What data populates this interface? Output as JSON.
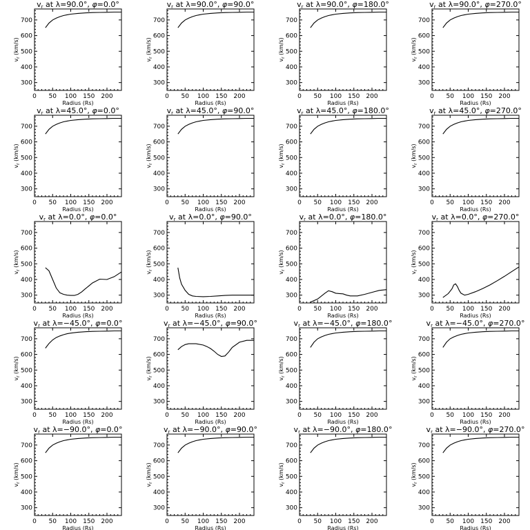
{
  "chart_data": [
    {
      "type": "line",
      "title": "v_r at λ=90.0°, φ=0.0°",
      "lat": "90.0",
      "phi": "0.0",
      "xlabel": "Radius (Rs)",
      "ylabel": "v_r (km/s)",
      "xlim": [
        0,
        240
      ],
      "ylim": [
        250,
        770
      ],
      "x": [
        30,
        40,
        50,
        60,
        70,
        80,
        90,
        100,
        120,
        140,
        160,
        180,
        200,
        220,
        240
      ],
      "y": [
        650,
        680,
        700,
        712,
        721,
        728,
        733,
        737,
        742,
        745,
        747,
        748,
        749,
        750,
        750
      ]
    },
    {
      "type": "line",
      "title": "v_r at λ=90.0°, φ=90.0°",
      "lat": "90.0",
      "phi": "90.0",
      "xlabel": "Radius (Rs)",
      "ylabel": "v_r (km/s)",
      "xlim": [
        0,
        240
      ],
      "ylim": [
        250,
        770
      ],
      "x": [
        30,
        40,
        50,
        60,
        70,
        80,
        90,
        100,
        120,
        140,
        160,
        180,
        200,
        220,
        240
      ],
      "y": [
        650,
        680,
        700,
        712,
        721,
        728,
        733,
        737,
        742,
        745,
        747,
        748,
        749,
        750,
        750
      ]
    },
    {
      "type": "line",
      "title": "v_r at λ=90.0°, φ=180.0°",
      "lat": "90.0",
      "phi": "180.0",
      "xlabel": "Radius (Rs)",
      "ylabel": "v_r (km/s)",
      "xlim": [
        0,
        240
      ],
      "ylim": [
        250,
        770
      ],
      "x": [
        30,
        40,
        50,
        60,
        70,
        80,
        90,
        100,
        120,
        140,
        160,
        180,
        200,
        220,
        240
      ],
      "y": [
        650,
        680,
        700,
        712,
        721,
        728,
        733,
        737,
        742,
        745,
        747,
        748,
        749,
        750,
        750
      ]
    },
    {
      "type": "line",
      "title": "v_r at λ=90.0°, φ=270.0°",
      "lat": "90.0",
      "phi": "270.0",
      "xlabel": "Radius (Rs)",
      "ylabel": "v_r (km/s)",
      "xlim": [
        0,
        240
      ],
      "ylim": [
        250,
        770
      ],
      "x": [
        30,
        40,
        50,
        60,
        70,
        80,
        90,
        100,
        120,
        140,
        160,
        180,
        200,
        220,
        240
      ],
      "y": [
        650,
        680,
        700,
        712,
        721,
        728,
        733,
        737,
        742,
        745,
        747,
        748,
        749,
        750,
        750
      ]
    },
    {
      "type": "line",
      "title": "v_r at λ=45.0°, φ=0.0°",
      "lat": "45.0",
      "phi": "0.0",
      "xlabel": "Radius (Rs)",
      "ylabel": "v_r (km/s)",
      "xlim": [
        0,
        240
      ],
      "ylim": [
        250,
        770
      ],
      "x": [
        30,
        40,
        50,
        60,
        70,
        80,
        90,
        100,
        120,
        140,
        160,
        180,
        200,
        220,
        240
      ],
      "y": [
        650,
        680,
        700,
        712,
        721,
        728,
        733,
        737,
        742,
        745,
        747,
        748,
        749,
        750,
        750
      ]
    },
    {
      "type": "line",
      "title": "v_r at λ=45.0°, φ=90.0°",
      "lat": "45.0",
      "phi": "90.0",
      "xlabel": "Radius (Rs)",
      "ylabel": "v_r (km/s)",
      "xlim": [
        0,
        240
      ],
      "ylim": [
        250,
        770
      ],
      "x": [
        30,
        40,
        50,
        60,
        70,
        80,
        90,
        100,
        120,
        140,
        160,
        180,
        200,
        220,
        240
      ],
      "y": [
        650,
        680,
        700,
        712,
        721,
        728,
        733,
        737,
        742,
        745,
        747,
        748,
        749,
        750,
        750
      ]
    },
    {
      "type": "line",
      "title": "v_r at λ=45.0°, φ=180.0°",
      "lat": "45.0",
      "phi": "180.0",
      "xlabel": "Radius (Rs)",
      "ylabel": "v_r (km/s)",
      "xlim": [
        0,
        240
      ],
      "ylim": [
        250,
        770
      ],
      "x": [
        30,
        40,
        50,
        60,
        70,
        80,
        90,
        100,
        120,
        140,
        160,
        180,
        200,
        220,
        240
      ],
      "y": [
        650,
        680,
        700,
        712,
        721,
        728,
        733,
        737,
        742,
        745,
        747,
        748,
        749,
        750,
        750
      ]
    },
    {
      "type": "line",
      "title": "v_r at λ=45.0°, φ=270.0°",
      "lat": "45.0",
      "phi": "270.0",
      "xlabel": "Radius (Rs)",
      "ylabel": "v_r (km/s)",
      "xlim": [
        0,
        240
      ],
      "ylim": [
        250,
        770
      ],
      "x": [
        30,
        40,
        50,
        60,
        70,
        80,
        90,
        100,
        120,
        140,
        160,
        180,
        200,
        220,
        240
      ],
      "y": [
        650,
        680,
        700,
        712,
        721,
        728,
        733,
        737,
        742,
        745,
        747,
        748,
        749,
        750,
        750
      ]
    },
    {
      "type": "line",
      "title": "v_r at λ=0.0°, φ=0.0°",
      "lat": "0.0",
      "phi": "0.0",
      "xlabel": "Radius (Rs)",
      "ylabel": "v_r (km/s)",
      "xlim": [
        0,
        240
      ],
      "ylim": [
        250,
        770
      ],
      "x": [
        30,
        40,
        50,
        60,
        70,
        80,
        90,
        100,
        110,
        120,
        130,
        140,
        160,
        180,
        200,
        220,
        240
      ],
      "y": [
        475,
        455,
        400,
        345,
        315,
        305,
        300,
        298,
        298,
        305,
        320,
        340,
        378,
        402,
        400,
        418,
        448
      ]
    },
    {
      "type": "line",
      "title": "v_r at λ=0.0°, φ=90.0°",
      "lat": "0.0",
      "phi": "90.0",
      "xlabel": "Radius (Rs)",
      "ylabel": "v_r (km/s)",
      "xlim": [
        0,
        240
      ],
      "ylim": [
        250,
        770
      ],
      "x": [
        30,
        35,
        40,
        50,
        60,
        70,
        80,
        100,
        120,
        140,
        160,
        180,
        200,
        220,
        240
      ],
      "y": [
        475,
        410,
        370,
        330,
        305,
        295,
        292,
        290,
        292,
        295,
        298,
        300,
        300,
        300,
        300
      ]
    },
    {
      "type": "line",
      "title": "v_r at λ=0.0°, φ=180.0°",
      "lat": "0.0",
      "phi": "180.0",
      "xlabel": "Radius (Rs)",
      "ylabel": "v_r (km/s)",
      "xlim": [
        0,
        240
      ],
      "ylim": [
        250,
        770
      ],
      "x": [
        30,
        50,
        70,
        80,
        90,
        100,
        110,
        120,
        130,
        140,
        160,
        180,
        200,
        220,
        240
      ],
      "y": [
        255,
        275,
        312,
        328,
        322,
        312,
        310,
        308,
        300,
        295,
        295,
        305,
        318,
        330,
        335
      ]
    },
    {
      "type": "line",
      "title": "v_r at λ=0.0°, φ=270.0°",
      "lat": "0.0",
      "phi": "270.0",
      "xlabel": "Radius (Rs)",
      "ylabel": "v_r (km/s)",
      "xlim": [
        0,
        240
      ],
      "ylim": [
        250,
        770
      ],
      "x": [
        30,
        45,
        55,
        60,
        65,
        70,
        75,
        80,
        90,
        100,
        120,
        140,
        160,
        180,
        200,
        220,
        240
      ],
      "y": [
        285,
        310,
        340,
        365,
        372,
        355,
        330,
        312,
        300,
        305,
        322,
        342,
        365,
        392,
        420,
        450,
        480
      ]
    },
    {
      "type": "line",
      "title": "v_r at λ=−45.0°, φ=0.0°",
      "lat": "−45.0",
      "phi": "0.0",
      "xlabel": "Radius (Rs)",
      "ylabel": "v_r (km/s)",
      "xlim": [
        0,
        240
      ],
      "ylim": [
        250,
        770
      ],
      "x": [
        30,
        40,
        50,
        60,
        70,
        80,
        90,
        100,
        120,
        140,
        160,
        180,
        200,
        220,
        240
      ],
      "y": [
        640,
        670,
        693,
        708,
        718,
        726,
        732,
        736,
        742,
        745,
        747,
        748,
        749,
        750,
        750
      ]
    },
    {
      "type": "line",
      "title": "v_r at λ=−45.0°, φ=90.0°",
      "lat": "−45.0",
      "phi": "90.0",
      "xlabel": "Radius (Rs)",
      "ylabel": "v_r (km/s)",
      "xlim": [
        0,
        240
      ],
      "ylim": [
        250,
        770
      ],
      "x": [
        30,
        40,
        50,
        60,
        80,
        100,
        110,
        120,
        130,
        140,
        150,
        160,
        170,
        180,
        200,
        220,
        240
      ],
      "y": [
        630,
        650,
        663,
        668,
        668,
        660,
        650,
        638,
        620,
        600,
        587,
        590,
        615,
        645,
        678,
        690,
        690
      ]
    },
    {
      "type": "line",
      "title": "v_r at λ=−45.0°, φ=180.0°",
      "lat": "−45.0",
      "phi": "180.0",
      "xlabel": "Radius (Rs)",
      "ylabel": "v_r (km/s)",
      "xlim": [
        0,
        240
      ],
      "ylim": [
        250,
        770
      ],
      "x": [
        30,
        40,
        50,
        60,
        70,
        80,
        90,
        100,
        120,
        140,
        160,
        180,
        200,
        220,
        240
      ],
      "y": [
        645,
        678,
        700,
        712,
        721,
        728,
        733,
        737,
        742,
        745,
        747,
        748,
        749,
        750,
        750
      ]
    },
    {
      "type": "line",
      "title": "v_r at λ=−45.0°, φ=270.0°",
      "lat": "−45.0",
      "phi": "270.0",
      "xlabel": "Radius (Rs)",
      "ylabel": "v_r (km/s)",
      "xlim": [
        0,
        240
      ],
      "ylim": [
        250,
        770
      ],
      "x": [
        30,
        40,
        50,
        60,
        70,
        80,
        90,
        100,
        120,
        140,
        160,
        180,
        200,
        220,
        240
      ],
      "y": [
        645,
        678,
        700,
        712,
        721,
        728,
        733,
        737,
        742,
        745,
        747,
        748,
        749,
        750,
        750
      ]
    },
    {
      "type": "line",
      "title": "v_r at λ=−90.0°, φ=0.0°",
      "lat": "−90.0",
      "phi": "0.0",
      "xlabel": "Radius (Rs)",
      "ylabel": "v_r (km/s)",
      "xlim": [
        0,
        240
      ],
      "ylim": [
        250,
        770
      ],
      "x": [
        30,
        40,
        50,
        60,
        70,
        80,
        90,
        100,
        120,
        140,
        160,
        180,
        200,
        220,
        240
      ],
      "y": [
        650,
        680,
        700,
        712,
        721,
        728,
        733,
        737,
        742,
        745,
        747,
        748,
        749,
        750,
        750
      ]
    },
    {
      "type": "line",
      "title": "v_r at λ=−90.0°, φ=90.0°",
      "lat": "−90.0",
      "phi": "90.0",
      "xlabel": "Radius (Rs)",
      "ylabel": "v_r (km/s)",
      "xlim": [
        0,
        240
      ],
      "ylim": [
        250,
        770
      ],
      "x": [
        30,
        40,
        50,
        60,
        70,
        80,
        90,
        100,
        120,
        140,
        160,
        180,
        200,
        220,
        240
      ],
      "y": [
        650,
        680,
        700,
        712,
        721,
        728,
        733,
        737,
        742,
        745,
        747,
        748,
        749,
        750,
        750
      ]
    },
    {
      "type": "line",
      "title": "v_r at λ=−90.0°, φ=180.0°",
      "lat": "−90.0",
      "phi": "180.0",
      "xlabel": "Radius (Rs)",
      "ylabel": "v_r (km/s)",
      "xlim": [
        0,
        240
      ],
      "ylim": [
        250,
        770
      ],
      "x": [
        30,
        40,
        50,
        60,
        70,
        80,
        90,
        100,
        120,
        140,
        160,
        180,
        200,
        220,
        240
      ],
      "y": [
        650,
        680,
        700,
        712,
        721,
        728,
        733,
        737,
        742,
        745,
        747,
        748,
        749,
        750,
        750
      ]
    },
    {
      "type": "line",
      "title": "v_r at λ=−90.0°, φ=270.0°",
      "lat": "−90.0",
      "phi": "270.0",
      "xlabel": "Radius (Rs)",
      "ylabel": "v_r (km/s)",
      "xlim": [
        0,
        240
      ],
      "ylim": [
        250,
        770
      ],
      "x": [
        30,
        40,
        50,
        60,
        70,
        80,
        90,
        100,
        120,
        140,
        160,
        180,
        200,
        220,
        240
      ],
      "y": [
        650,
        680,
        700,
        712,
        721,
        728,
        733,
        737,
        742,
        745,
        747,
        748,
        749,
        750,
        750
      ]
    }
  ],
  "axes": {
    "xticks": [
      0,
      50,
      100,
      150,
      200
    ],
    "yticks": [
      300,
      400,
      500,
      600,
      700
    ],
    "xlabel_text": "Radius (Rs)",
    "ylabel_main": "v",
    "ylabel_sub": "r",
    "ylabel_rest": " (km/s)",
    "title_v": "v",
    "title_sub": "r",
    "title_at": " at λ=",
    "title_deg": "°, ",
    "title_phi": "φ=",
    "title_end": "°"
  }
}
